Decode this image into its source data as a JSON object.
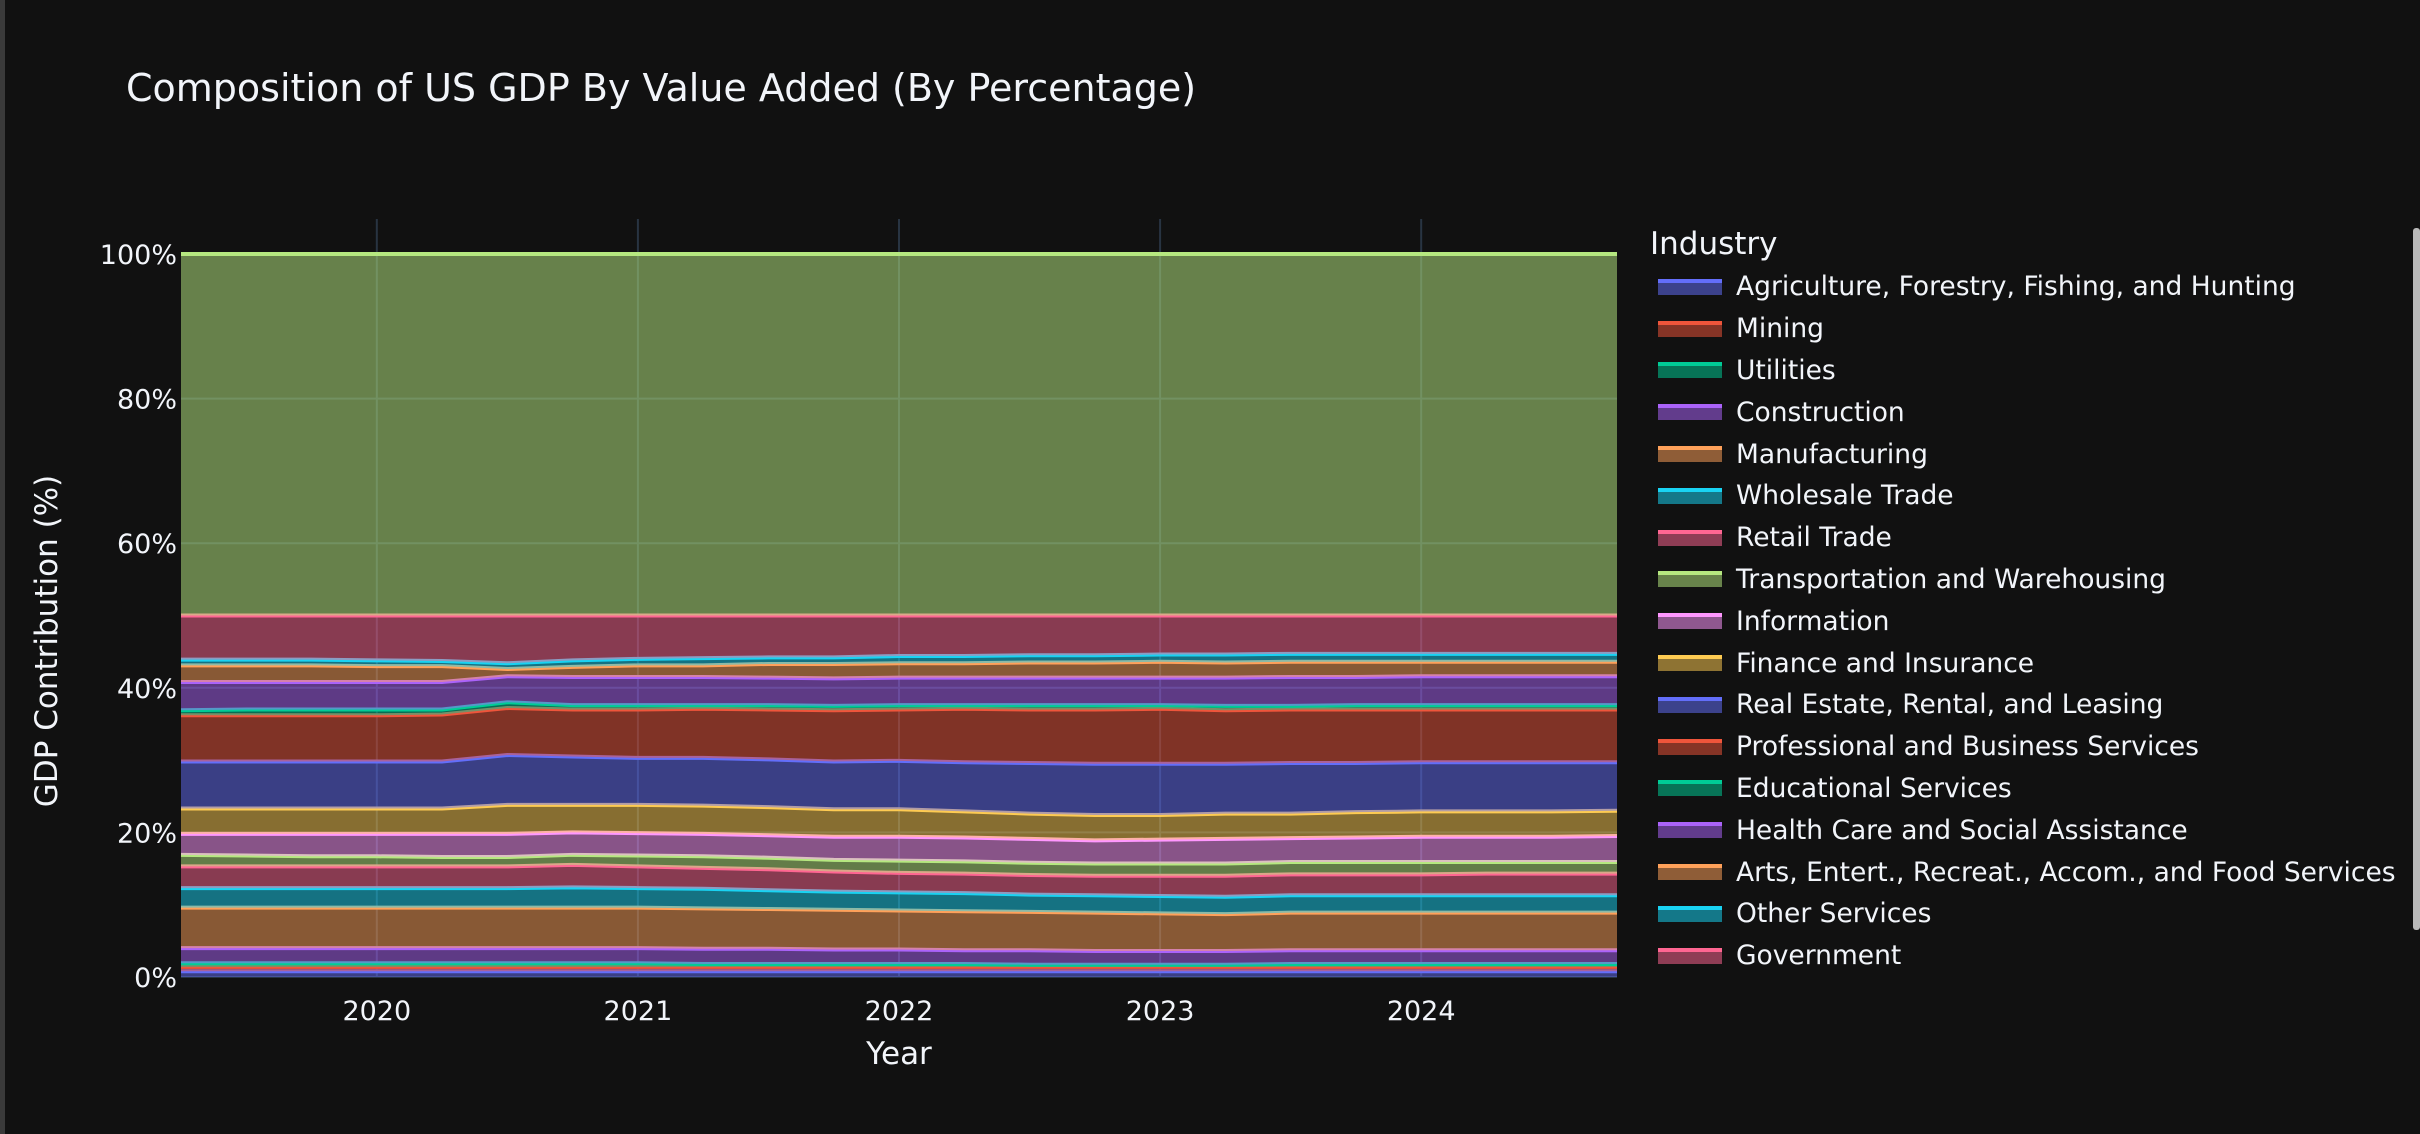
{
  "title": "Composition of US GDP By Value Added (By Percentage)",
  "legend": {
    "title": "Industry",
    "items": [
      {
        "label": "Agriculture, Forestry, Fishing, and Hunting",
        "color": "#636efa"
      },
      {
        "label": "Mining",
        "color": "#EF553B"
      },
      {
        "label": "Utilities",
        "color": "#00cc96"
      },
      {
        "label": "Construction",
        "color": "#ab63fa"
      },
      {
        "label": "Manufacturing",
        "color": "#FFA15A"
      },
      {
        "label": "Wholesale Trade",
        "color": "#19d3f3"
      },
      {
        "label": "Retail Trade",
        "color": "#FF6692"
      },
      {
        "label": "Transportation and Warehousing",
        "color": "#B6E880"
      },
      {
        "label": "Information",
        "color": "#FF97FF"
      },
      {
        "label": "Finance and Insurance",
        "color": "#FECB52"
      },
      {
        "label": "Real Estate, Rental, and Leasing",
        "color": "#636efa"
      },
      {
        "label": "Professional and Business Services",
        "color": "#EF553B"
      },
      {
        "label": "Educational Services",
        "color": "#00cc96"
      },
      {
        "label": "Health Care and Social Assistance",
        "color": "#ab63fa"
      },
      {
        "label": "Arts, Entert., Recreat., Accom., and Food Services",
        "color": "#FFA15A"
      },
      {
        "label": "Other Services",
        "color": "#19d3f3"
      },
      {
        "label": "Government",
        "color": "#FF6692"
      }
    ]
  },
  "chart_data": {
    "type": "area",
    "title": "Composition of US GDP By Value Added (By Percentage)",
    "xlabel": "Year",
    "ylabel": "GDP Contribution (%)",
    "ylim": [
      0,
      100
    ],
    "xlim": [
      2019.25,
      2024.75
    ],
    "x_ticks": [
      "2020",
      "2021",
      "2022",
      "2023",
      "2024"
    ],
    "y_ticks": [
      "0%",
      "20%",
      "40%",
      "60%",
      "80%",
      "100%"
    ],
    "grid": true,
    "legend_position": "right",
    "stacked": true,
    "x": [
      2019.25,
      2019.5,
      2019.75,
      2020.0,
      2020.25,
      2020.5,
      2020.75,
      2021.0,
      2021.25,
      2021.5,
      2021.75,
      2022.0,
      2022.25,
      2022.5,
      2022.75,
      2023.0,
      2023.25,
      2023.5,
      2023.75,
      2024.0,
      2024.25,
      2024.5,
      2024.75
    ],
    "cumulative_top": {
      "Agriculture, Forestry, Fishing, and Hunting": [
        0.8,
        0.8,
        0.8,
        0.8,
        0.8,
        0.8,
        0.8,
        0.8,
        0.8,
        0.8,
        0.8,
        0.8,
        0.8,
        0.8,
        0.8,
        0.8,
        0.8,
        0.8,
        0.8,
        0.8,
        0.8,
        0.8,
        0.8
      ],
      "Mining": [
        1.4,
        1.4,
        1.4,
        1.4,
        1.4,
        1.4,
        1.4,
        1.4,
        1.4,
        1.4,
        1.4,
        1.4,
        1.4,
        1.4,
        1.4,
        1.4,
        1.4,
        1.4,
        1.4,
        1.4,
        1.4,
        1.4,
        1.4
      ],
      "Utilities": [
        1.9,
        1.9,
        1.9,
        1.9,
        1.9,
        1.9,
        1.9,
        1.9,
        1.8,
        1.8,
        1.8,
        1.8,
        1.8,
        1.7,
        1.7,
        1.7,
        1.7,
        1.8,
        1.8,
        1.8,
        1.8,
        1.8,
        1.8
      ],
      "Construction": [
        4.0,
        4.0,
        4.0,
        4.0,
        4.0,
        4.0,
        4.0,
        4.0,
        3.9,
        3.9,
        3.8,
        3.8,
        3.7,
        3.7,
        3.6,
        3.6,
        3.6,
        3.7,
        3.7,
        3.7,
        3.7,
        3.7,
        3.7
      ],
      "Manufacturing": [
        9.6,
        9.6,
        9.6,
        9.6,
        9.6,
        9.6,
        9.6,
        9.6,
        9.5,
        9.4,
        9.3,
        9.2,
        9.1,
        9.0,
        8.9,
        8.8,
        8.7,
        8.9,
        8.9,
        8.9,
        8.9,
        8.9,
        8.9
      ],
      "Wholesale Trade": [
        12.3,
        12.3,
        12.3,
        12.3,
        12.3,
        12.3,
        12.4,
        12.3,
        12.2,
        12.0,
        11.8,
        11.7,
        11.6,
        11.4,
        11.3,
        11.2,
        11.1,
        11.3,
        11.3,
        11.3,
        11.3,
        11.3,
        11.3
      ],
      "Retail Trade": [
        15.3,
        15.3,
        15.3,
        15.3,
        15.3,
        15.3,
        15.5,
        15.3,
        15.1,
        14.9,
        14.6,
        14.4,
        14.3,
        14.1,
        14.0,
        14.0,
        14.0,
        14.2,
        14.2,
        14.2,
        14.3,
        14.3,
        14.3
      ],
      "Transportation and Warehousing": [
        16.9,
        16.8,
        16.7,
        16.7,
        16.6,
        16.6,
        16.9,
        16.8,
        16.7,
        16.5,
        16.2,
        16.1,
        16.0,
        15.8,
        15.7,
        15.7,
        15.7,
        15.9,
        15.9,
        15.9,
        15.9,
        15.9,
        15.9
      ],
      "Information": [
        19.8,
        19.8,
        19.8,
        19.8,
        19.8,
        19.8,
        20.0,
        19.9,
        19.8,
        19.6,
        19.4,
        19.4,
        19.3,
        19.1,
        18.9,
        19.0,
        19.1,
        19.2,
        19.3,
        19.4,
        19.4,
        19.4,
        19.5
      ],
      "Finance and Insurance": [
        23.3,
        23.3,
        23.3,
        23.3,
        23.3,
        23.8,
        23.8,
        23.8,
        23.7,
        23.5,
        23.2,
        23.2,
        22.9,
        22.6,
        22.4,
        22.4,
        22.6,
        22.6,
        22.8,
        22.9,
        22.9,
        22.9,
        23.0
      ],
      "Real Estate, Rental, and Leasing": [
        29.8,
        29.8,
        29.8,
        29.8,
        29.8,
        30.7,
        30.5,
        30.3,
        30.3,
        30.1,
        29.8,
        29.9,
        29.7,
        29.6,
        29.5,
        29.5,
        29.5,
        29.6,
        29.6,
        29.7,
        29.7,
        29.7,
        29.7
      ],
      "Professional and Business Services": [
        36.2,
        36.2,
        36.2,
        36.2,
        36.3,
        37.2,
        37.0,
        37.0,
        37.1,
        37.0,
        36.9,
        37.0,
        37.1,
        37.0,
        37.0,
        37.1,
        36.9,
        37.0,
        37.0,
        37.0,
        37.0,
        37.0,
        37.0
      ],
      "Educational Services": [
        36.9,
        37.0,
        37.0,
        37.0,
        37.0,
        38.0,
        37.6,
        37.6,
        37.6,
        37.6,
        37.5,
        37.6,
        37.6,
        37.6,
        37.6,
        37.6,
        37.5,
        37.5,
        37.6,
        37.6,
        37.6,
        37.6,
        37.6
      ],
      "Health Care and Social Assistance": [
        40.8,
        40.8,
        40.8,
        40.8,
        40.8,
        41.6,
        41.5,
        41.5,
        41.5,
        41.4,
        41.3,
        41.4,
        41.4,
        41.4,
        41.4,
        41.4,
        41.4,
        41.5,
        41.5,
        41.6,
        41.6,
        41.6,
        41.6
      ],
      "Arts, Entert., Recreat., Accom., and Food Services": [
        43.1,
        43.1,
        43.1,
        43.0,
        43.0,
        42.6,
        42.9,
        43.1,
        43.1,
        43.3,
        43.3,
        43.4,
        43.4,
        43.5,
        43.5,
        43.6,
        43.5,
        43.6,
        43.6,
        43.6,
        43.6,
        43.6,
        43.6
      ],
      "Other Services": [
        43.9,
        43.9,
        43.9,
        43.8,
        43.7,
        43.4,
        43.8,
        44.0,
        44.1,
        44.2,
        44.2,
        44.4,
        44.4,
        44.5,
        44.5,
        44.6,
        44.6,
        44.7,
        44.7,
        44.7,
        44.7,
        44.7,
        44.7
      ],
      "Government": [
        50.0,
        50.0,
        50.0,
        50.0,
        50.0,
        50.0,
        50.0,
        50.0,
        50.0,
        50.0,
        50.0,
        50.0,
        50.0,
        50.0,
        50.0,
        50.0,
        50.0,
        50.0,
        50.0,
        50.0,
        50.0,
        50.0,
        50.0
      ],
      "Transportation and Warehousing (top band)": [
        100,
        100,
        100,
        100,
        100,
        100,
        100,
        100,
        100,
        100,
        100,
        100,
        100,
        100,
        100,
        100,
        100,
        100,
        100,
        100,
        100,
        100,
        100
      ]
    }
  }
}
